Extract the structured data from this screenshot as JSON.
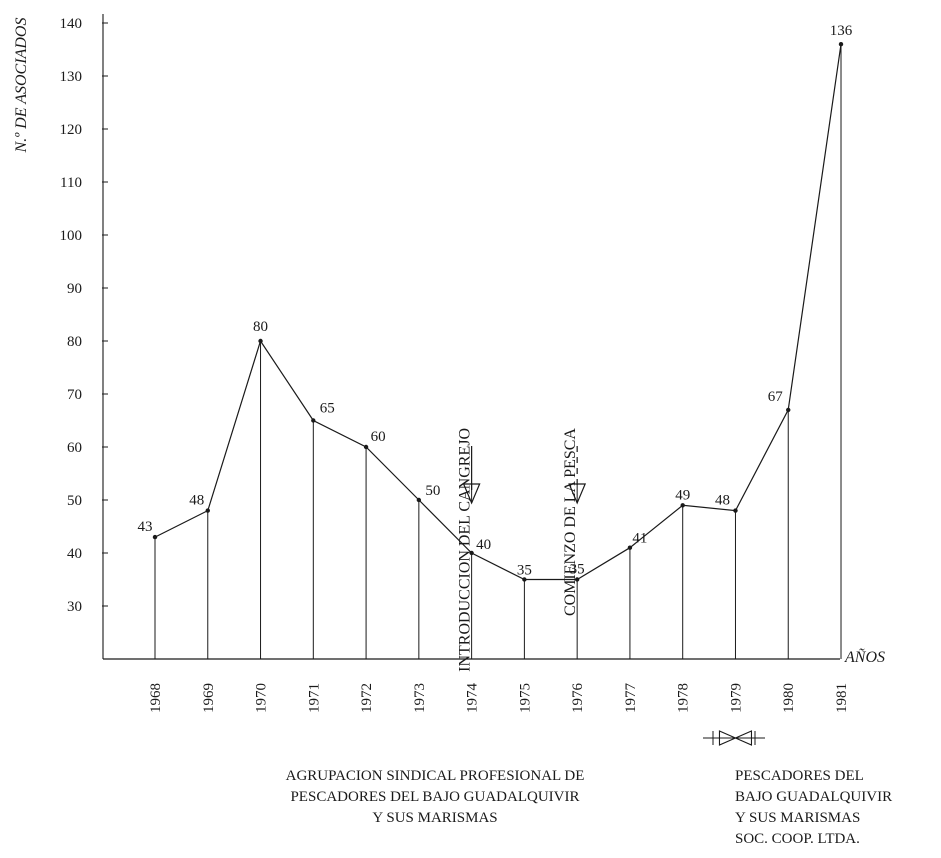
{
  "chart_data": {
    "type": "line",
    "x": [
      "1968",
      "1969",
      "1970",
      "1971",
      "1972",
      "1973",
      "1974",
      "1975",
      "1976",
      "1977",
      "1978",
      "1979",
      "1980",
      "1981"
    ],
    "series": [
      {
        "values": [
          43,
          48,
          80,
          65,
          60,
          50,
          40,
          35,
          35,
          41,
          49,
          48,
          67,
          136
        ]
      }
    ],
    "data_labels": [
      "43",
      "48",
      "80",
      "65",
      "60",
      "50",
      "40",
      "35",
      "35",
      "41",
      "49",
      "48",
      "67",
      "136"
    ],
    "ylabel": "N.º DE ASOCIADOS",
    "xlabel": "AÑOS",
    "yticks": [
      30,
      40,
      50,
      60,
      70,
      80,
      90,
      100,
      110,
      120,
      130,
      140
    ],
    "ytick_labels": [
      "30",
      "40",
      "50",
      "60",
      "70",
      "80",
      "90",
      "100",
      "110",
      "120",
      "130",
      "140"
    ],
    "ylim": [
      20,
      140
    ],
    "grid": false,
    "legend": "none",
    "annotations": [
      {
        "text": "INTRODUCCION DEL CANGREJO",
        "x": "1974",
        "style": "solid-arrow"
      },
      {
        "text": "COMIENZO DE LA PESCA",
        "x": "1976",
        "style": "dashed-arrow"
      }
    ],
    "transition_marker": {
      "x_between": [
        "1978",
        "1979"
      ]
    }
  },
  "captions": {
    "left": [
      "AGRUPACION SINDICAL PROFESIONAL DE",
      "PESCADORES DEL BAJO GUADALQUIVIR",
      "Y SUS MARISMAS"
    ],
    "right": [
      "PESCADORES DEL",
      "BAJO GUADALQUIVIR",
      "Y SUS MARISMAS",
      "SOC. COOP. LTDA."
    ]
  },
  "colors": {
    "ink": "#1a1a1a",
    "background": "#ffffff"
  }
}
